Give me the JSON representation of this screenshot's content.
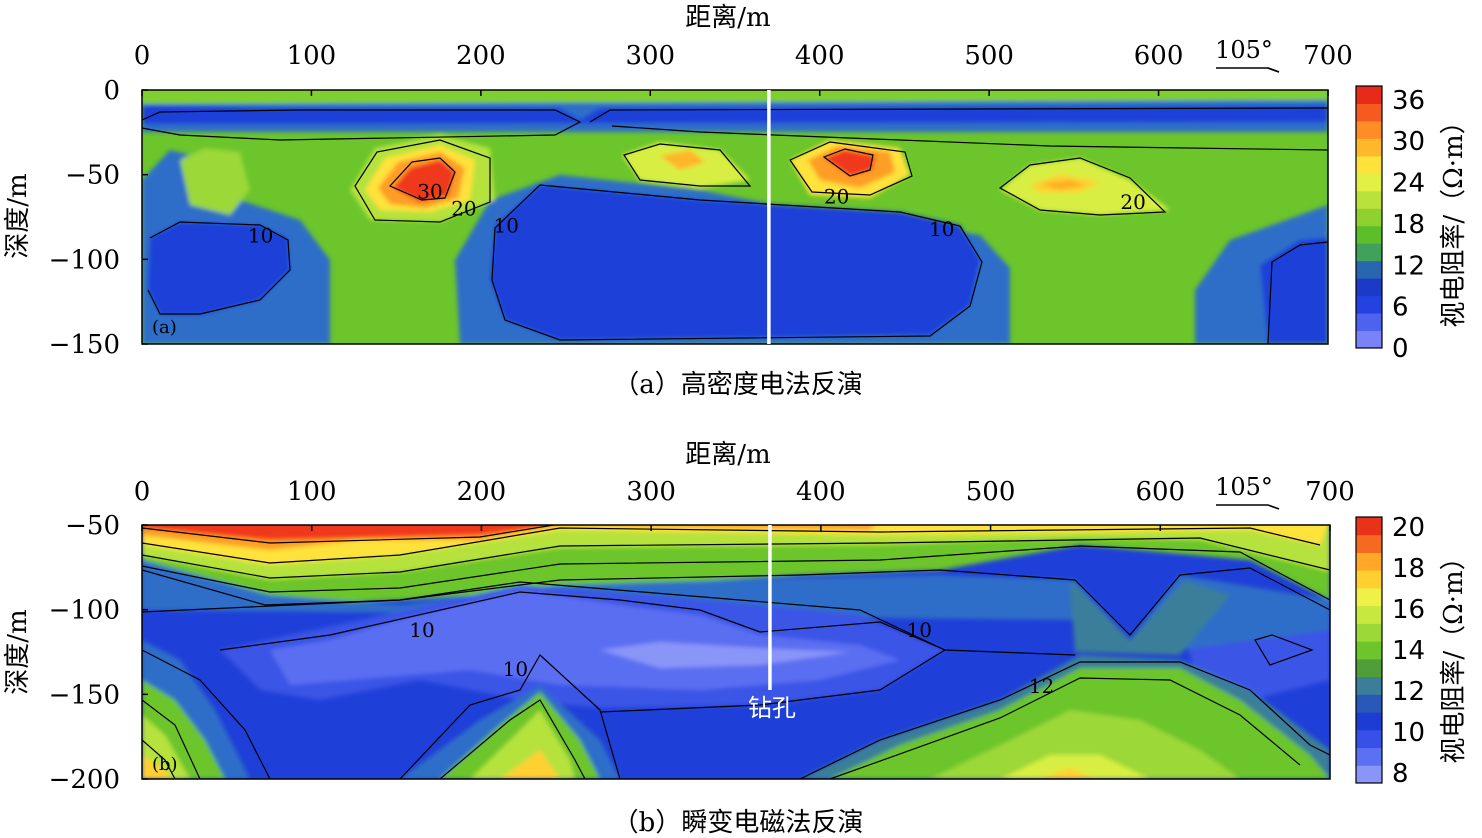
{
  "chart_data": [
    {
      "type": "heatmap",
      "panel_tag": "(a)",
      "caption": "（a）高密度电法反演",
      "xlabel": "距离/m",
      "ylabel": "深度/m",
      "x_ticks": [
        0,
        100,
        200,
        300,
        400,
        500,
        600,
        700
      ],
      "y_ticks": [
        0,
        -50,
        -100,
        -150
      ],
      "xlim": [
        0,
        700
      ],
      "ylim": [
        -150,
        0
      ],
      "direction_label": "105°",
      "colorbar": {
        "label": "视电阻率/（Ω·m）",
        "ticks": [
          0,
          6,
          12,
          18,
          24,
          30,
          36
        ],
        "range": [
          0,
          38
        ]
      },
      "contour_labels": [
        {
          "text": "30",
          "x": 170,
          "y": -60
        },
        {
          "text": "20",
          "x": 190,
          "y": -70
        },
        {
          "text": "10",
          "x": 70,
          "y": -86
        },
        {
          "text": "10",
          "x": 215,
          "y": -80
        },
        {
          "text": "20",
          "x": 410,
          "y": -63
        },
        {
          "text": "10",
          "x": 472,
          "y": -82
        },
        {
          "text": "20",
          "x": 585,
          "y": -66
        }
      ],
      "borehole": {
        "x": 370
      }
    },
    {
      "type": "heatmap",
      "panel_tag": "(b)",
      "caption": "（b）瞬变电磁法反演",
      "xlabel": "距离/m",
      "ylabel": "深度/m",
      "x_ticks": [
        0,
        100,
        200,
        300,
        400,
        500,
        600,
        700
      ],
      "y_ticks": [
        -50,
        -100,
        -150,
        -200
      ],
      "xlim": [
        0,
        700
      ],
      "ylim": [
        -200,
        -50
      ],
      "direction_label": "105°",
      "colorbar": {
        "label": "视电阻率/（Ω·m）",
        "ticks": [
          8,
          10,
          12,
          14,
          16,
          18,
          20
        ],
        "range": [
          7.5,
          20.5
        ]
      },
      "contour_labels": [
        {
          "text": "10",
          "x": 165,
          "y": -112
        },
        {
          "text": "10",
          "x": 220,
          "y": -135
        },
        {
          "text": "10",
          "x": 458,
          "y": -112
        },
        {
          "text": "12",
          "x": 530,
          "y": -145
        }
      ],
      "borehole": {
        "x": 370,
        "label": "钻孔"
      }
    }
  ]
}
